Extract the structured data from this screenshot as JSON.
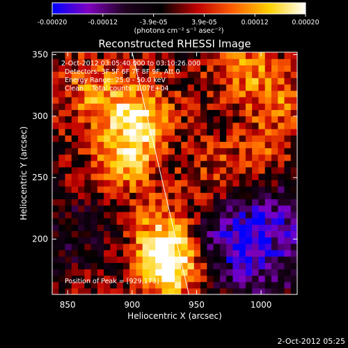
{
  "chart_data": {
    "type": "heatmap",
    "title": "Reconstructed RHESSI Image",
    "xlabel": "Heliocentric X (arcsec)",
    "ylabel": "Heliocentric Y (arcsec)",
    "xlim": [
      838,
      1028
    ],
    "ylim": [
      155,
      352
    ],
    "xticks": [
      850,
      900,
      950,
      1000
    ],
    "yticks": [
      200,
      250,
      300,
      350
    ],
    "colorbar": {
      "min": -0.0002,
      "max": 0.0002,
      "tick_labels": [
        "-0.00020",
        "-0.00012",
        "-3.9e-05",
        "3.9e-05",
        "0.00012",
        "0.00020"
      ],
      "unit_label": "(photons cm⁻² s⁻¹ asec⁻²)",
      "colors": [
        "#0000ff",
        "#8000c0",
        "#200020",
        "#000000",
        "#c00000",
        "#ff6000",
        "#ffd000",
        "#ffffff"
      ]
    },
    "annotations": [
      "2-Oct-2012 03:05:40.000 to 03:10:26.000",
      "Detectors: 3F 5F 6F 7F 8F 9F, Att 0",
      "Energy Range: 25.0 - 50.0 keV",
      "Clean    Total counts: 1.07E+04"
    ],
    "peak_label": "Position of Peak = [929,173]",
    "limb_line": {
      "from": [
        900,
        352
      ],
      "to": [
        944,
        155
      ]
    },
    "sources": [
      {
        "x": 930,
        "y": 178,
        "value": 0.0002
      },
      {
        "x": 905,
        "y": 300,
        "value": 0.00016
      },
      {
        "x": 895,
        "y": 265,
        "value": 0.00013
      },
      {
        "x": 925,
        "y": 205,
        "value": 0.00012
      },
      {
        "x": 870,
        "y": 320,
        "value": 9e-05
      },
      {
        "x": 985,
        "y": 340,
        "value": 9e-05
      },
      {
        "x": 1005,
        "y": 270,
        "value": 7e-05
      },
      {
        "x": 1015,
        "y": 315,
        "value": 8e-05
      },
      {
        "x": 965,
        "y": 250,
        "value": 7e-05
      },
      {
        "x": 975,
        "y": 205,
        "value": -0.00012
      },
      {
        "x": 1000,
        "y": 180,
        "value": -0.0001
      },
      {
        "x": 1020,
        "y": 225,
        "value": -8e-05
      },
      {
        "x": 850,
        "y": 205,
        "value": -6e-05
      }
    ]
  },
  "footer": {
    "timestamp": "2-Oct-2012 05:25"
  }
}
